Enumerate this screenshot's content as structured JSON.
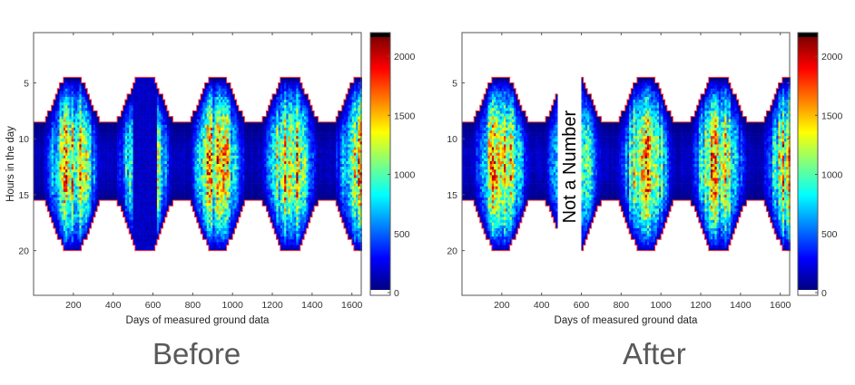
{
  "chart_data": [
    {
      "type": "heatmap",
      "caption": "Before",
      "xlabel": "Days of measured ground data",
      "ylabel": "Hours in the day",
      "xlim": [
        0,
        1647
      ],
      "ylim": [
        0.5,
        24
      ],
      "y_reversed": true,
      "xticks": [
        200,
        400,
        600,
        800,
        1000,
        1200,
        1400,
        1600
      ],
      "yticks": [
        5,
        10,
        15,
        20
      ],
      "colorbar": {
        "clim": [
          0,
          2200
        ],
        "ticks": [
          0,
          500,
          1000,
          1500,
          2000
        ],
        "colormap": "jet"
      },
      "envelope": {
        "period_days": 365,
        "peak_days": [
          190,
          555,
          920,
          1290,
          1650
        ],
        "sunrise_range_h": [
          4.5,
          8.5
        ],
        "sunset_range_h": [
          15.5,
          20
        ],
        "boundary_color": "#ff3333"
      },
      "max_value": 2100,
      "anomaly": {
        "days": [
          500,
          620
        ],
        "kind": "low-values",
        "value": 150
      },
      "annotation": ""
    },
    {
      "type": "heatmap",
      "caption": "After",
      "xlabel": "Days of measured ground data",
      "ylabel": "",
      "xlim": [
        0,
        1647
      ],
      "ylim": [
        0.5,
        24
      ],
      "y_reversed": true,
      "xticks": [
        200,
        400,
        600,
        800,
        1000,
        1200,
        1400,
        1600
      ],
      "yticks": [
        5,
        10,
        15,
        20
      ],
      "colorbar": {
        "clim": [
          0,
          2200
        ],
        "ticks": [
          0,
          500,
          1000,
          1500,
          2000
        ],
        "colormap": "jet"
      },
      "envelope": {
        "period_days": 365,
        "peak_days": [
          190,
          555,
          920,
          1290,
          1650
        ],
        "sunrise_range_h": [
          4.5,
          8.5
        ],
        "sunset_range_h": [
          15.5,
          20
        ],
        "boundary_color": "#ff3333"
      },
      "max_value": 2100,
      "anomaly": {
        "days": [
          480,
          598
        ],
        "kind": "NaN"
      },
      "annotation": "Not a Number"
    }
  ]
}
